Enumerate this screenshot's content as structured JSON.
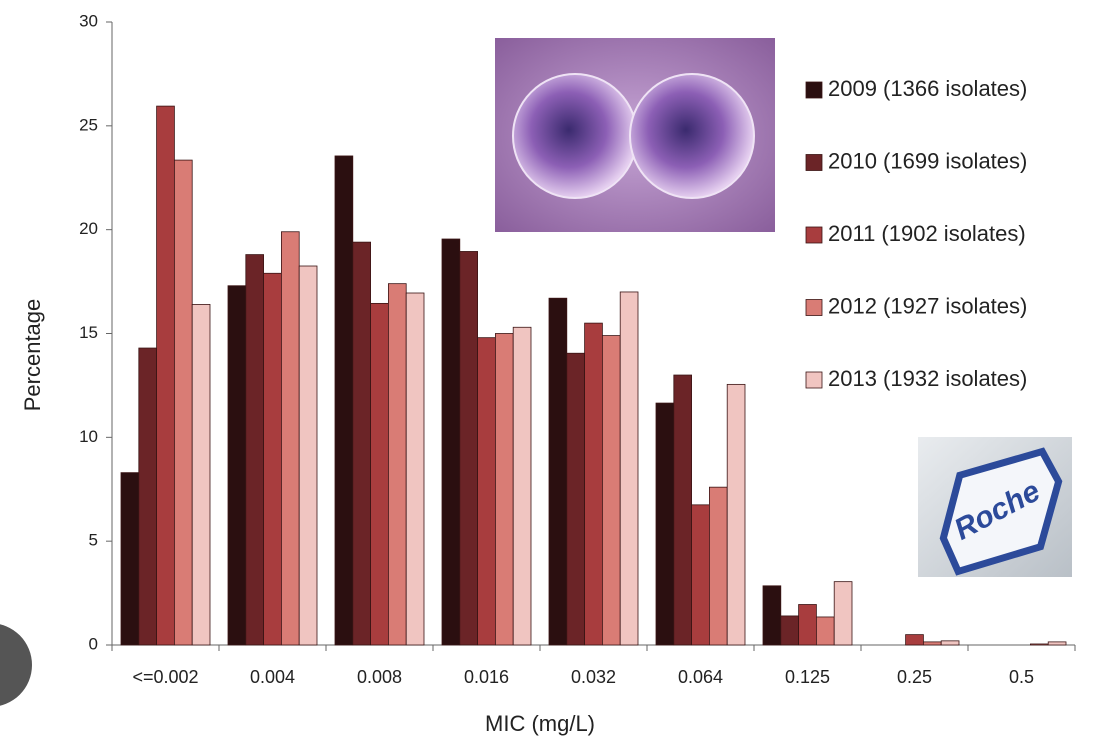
{
  "chart_data": {
    "type": "bar",
    "x_label": "MIC (mg/L)",
    "y_label": "Percentage",
    "categories": [
      "<=0.002",
      "0.004",
      "0.008",
      "0.016",
      "0.032",
      "0.064",
      "0.125",
      "0.25",
      "0.5"
    ],
    "series": [
      {
        "name": "2009 (1366 isolates)",
        "color": "#2b0f10",
        "values": [
          8.3,
          17.3,
          23.55,
          19.55,
          16.7,
          11.65,
          2.85,
          0,
          0
        ]
      },
      {
        "name": "2010 (1699 isolates)",
        "color": "#6b2427",
        "values": [
          14.3,
          18.8,
          19.4,
          18.95,
          14.05,
          13.0,
          1.4,
          0,
          0
        ]
      },
      {
        "name": "2011 (1902 isolates)",
        "color": "#a83d3e",
        "values": [
          25.95,
          17.9,
          16.45,
          14.8,
          15.5,
          6.75,
          1.95,
          0.5,
          0
        ]
      },
      {
        "name": "2012 (1927 isolates)",
        "color": "#d97c75",
        "values": [
          23.35,
          19.9,
          17.4,
          15.0,
          14.9,
          7.6,
          1.35,
          0.15,
          0.05
        ]
      },
      {
        "name": "2013 (1932 isolates)",
        "color": "#f0c5c1",
        "values": [
          16.4,
          18.25,
          16.95,
          15.3,
          17.0,
          12.55,
          3.05,
          0.2,
          0.15
        ]
      }
    ],
    "ylim": [
      0,
      30
    ],
    "yticks": [
      0,
      5,
      10,
      15,
      20,
      25,
      30
    ],
    "grid": false,
    "legend": "right"
  },
  "logo_text": "Roche"
}
